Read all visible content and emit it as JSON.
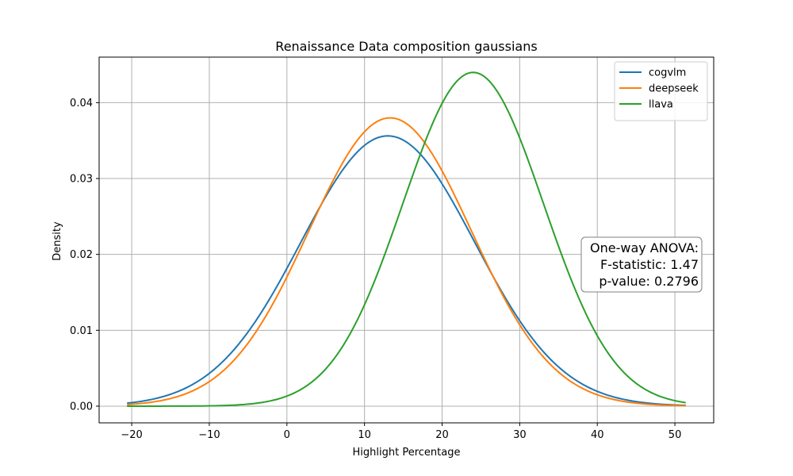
{
  "chart_data": {
    "type": "line",
    "title": "Renaissance Data composition gaussians",
    "xlabel": "Highlight Percentage",
    "ylabel": "Density",
    "xlim": [
      -24.2,
      55.0
    ],
    "ylim": [
      -0.0022,
      0.046
    ],
    "xticks": [
      -20,
      -10,
      0,
      10,
      20,
      30,
      40,
      50
    ],
    "xtick_labels": [
      "−20",
      "−10",
      "0",
      "10",
      "20",
      "30",
      "40",
      "50"
    ],
    "yticks": [
      0.0,
      0.01,
      0.02,
      0.03,
      0.04
    ],
    "ytick_labels": [
      "0.00",
      "0.01",
      "0.02",
      "0.03",
      "0.04"
    ],
    "x_domain": [
      -20.6,
      51.4
    ],
    "grid": true,
    "legend_position": "top-right",
    "series": [
      {
        "name": "cogvlm",
        "color": "#1f77b4",
        "distribution": "normal",
        "mean": 13.0,
        "std": 11.2,
        "peak_density": 0.0356
      },
      {
        "name": "deepseek",
        "color": "#ff7f0e",
        "distribution": "normal",
        "mean": 13.3,
        "std": 10.5,
        "peak_density": 0.038
      },
      {
        "name": "llava",
        "color": "#2ca02c",
        "distribution": "normal",
        "mean": 24.0,
        "std": 9.07,
        "peak_density": 0.044
      }
    ],
    "annotation": {
      "lines": [
        "One-way ANOVA:",
        "F-statistic: 1.47",
        "p-value: 0.2796"
      ],
      "position": "right"
    }
  }
}
